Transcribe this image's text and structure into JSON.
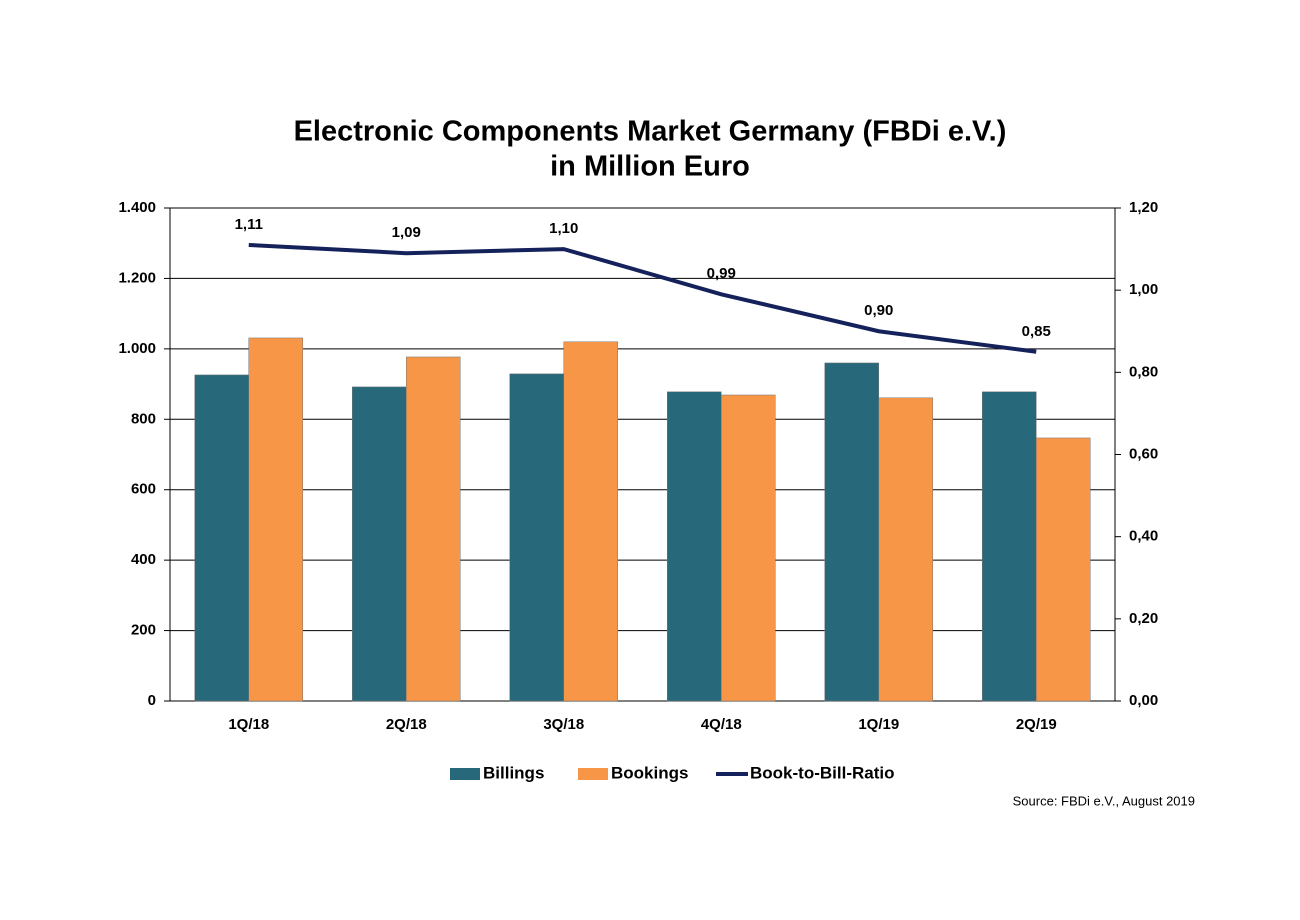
{
  "chart_data": {
    "type": "bar",
    "title": [
      "Electronic Components Market Germany (FBDi e.V.)",
      "in Million Euro"
    ],
    "source": "Source: FBDi e.V., August 2019",
    "categories": [
      "1Q/18",
      "2Q/18",
      "3Q/18",
      "4Q/18",
      "1Q/19",
      "2Q/19"
    ],
    "series": [
      {
        "name": "Billings",
        "type": "bar",
        "color": "#27697a",
        "values": [
          926,
          892,
          929,
          878,
          960,
          878
        ]
      },
      {
        "name": "Bookings",
        "type": "bar",
        "color": "#f79646",
        "values": [
          1031,
          977,
          1020,
          869,
          861,
          747
        ]
      },
      {
        "name": "Book-to-Bill-Ratio",
        "type": "line",
        "axis": "y2",
        "color": "#14215a",
        "values": [
          1.11,
          1.09,
          1.1,
          0.99,
          0.9,
          0.85
        ],
        "value_labels": [
          "1,11",
          "1,09",
          "1,10",
          "0,99",
          "0,90",
          "0,85"
        ]
      }
    ],
    "ylim": [
      0,
      1400
    ],
    "yticks": [
      0,
      {
        "value": 200,
        "label": "200"
      },
      {
        "value": 400,
        "label": "400"
      },
      {
        "value": 600,
        "label": "600"
      },
      {
        "value": 800,
        "label": "800"
      },
      {
        "value": 1000,
        "label": "1.000"
      },
      {
        "value": 1200,
        "label": "1.200"
      },
      {
        "value": 1400,
        "label": "1.400"
      }
    ],
    "y2lim": [
      0,
      1.2
    ],
    "y2ticks": [
      {
        "value": 0,
        "label": "0,00"
      },
      {
        "value": 0.2,
        "label": "0,20"
      },
      {
        "value": 0.4,
        "label": "0,40"
      },
      {
        "value": 0.6,
        "label": "0,60"
      },
      {
        "value": 0.8,
        "label": "0,80"
      },
      {
        "value": 1.0,
        "label": "1,00"
      },
      {
        "value": 1.2,
        "label": "1,20"
      }
    ],
    "grid": true,
    "legend": "bottom"
  }
}
